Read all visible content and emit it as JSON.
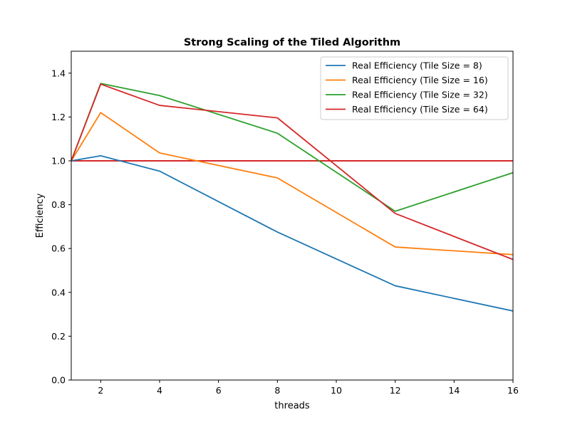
{
  "chart_data": {
    "type": "line",
    "title": "Strong Scaling of the Tiled Algorithm",
    "xlabel": "threads",
    "ylabel": "Efficiency",
    "xlim": [
      1,
      16
    ],
    "ylim": [
      0.0,
      1.5
    ],
    "xticks": [
      2,
      4,
      6,
      8,
      10,
      12,
      14,
      16
    ],
    "yticks": [
      0.0,
      0.2,
      0.4,
      0.6,
      0.8,
      1.0,
      1.2,
      1.4
    ],
    "legend_position": "top-right",
    "grid": false,
    "x": [
      1,
      2,
      4,
      8,
      12,
      16
    ],
    "series": [
      {
        "name": "Real Efficiency (Tile Size = 8)",
        "color": "#1f77b4",
        "values": [
          1.0,
          1.023,
          0.953,
          0.675,
          0.43,
          0.315
        ]
      },
      {
        "name": "Real Efficiency (Tile Size = 16)",
        "color": "#ff7f0e",
        "values": [
          1.0,
          1.22,
          1.036,
          0.922,
          0.607,
          0.572
        ]
      },
      {
        "name": "Real Efficiency (Tile Size = 32)",
        "color": "#2ca02c",
        "values": [
          1.0,
          1.353,
          1.298,
          1.126,
          0.77,
          0.946
        ]
      },
      {
        "name": "Real Efficiency (Tile Size = 64)",
        "color": "#d62728",
        "values": [
          1.0,
          1.35,
          1.253,
          1.196,
          0.76,
          0.55
        ]
      }
    ],
    "reference_line": {
      "y": 1.0,
      "color": "#d62728"
    }
  }
}
